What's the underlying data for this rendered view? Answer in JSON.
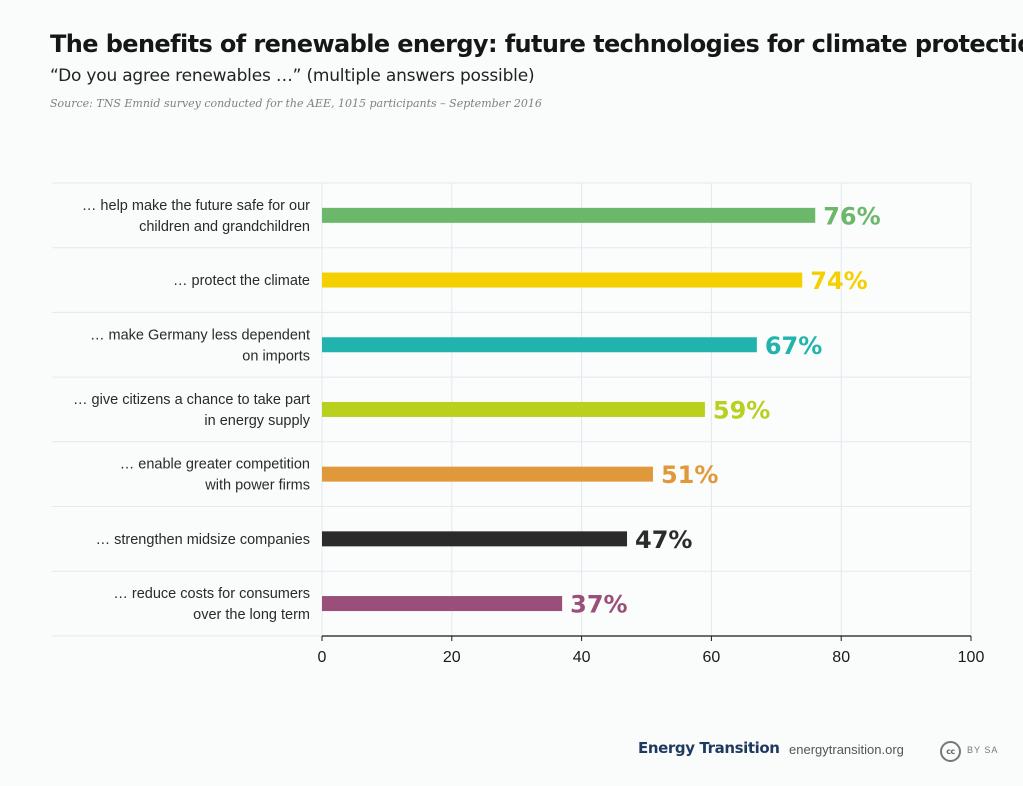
{
  "header": {
    "title": "The benefits of renewable energy: future technologies for climate protection",
    "subtitle": "“Do you agree renewables …” (multiple answers possible)",
    "source": "Source: TNS Emnid survey conducted for the AEE, 1015 participants – September 2016"
  },
  "chart_data": {
    "type": "bar",
    "orientation": "horizontal",
    "title": "The benefits of renewable energy: future technologies for climate protection",
    "subtitle": "“Do you agree renewables …” (multiple answers possible)",
    "categories": [
      [
        "… help make the future safe for our",
        "children and grandchildren"
      ],
      [
        "… protect the climate"
      ],
      [
        "… make Germany less dependent",
        "on imports"
      ],
      [
        "… give citizens a chance to take part",
        "in energy supply"
      ],
      [
        "… enable greater competition",
        "with power firms"
      ],
      [
        "… strengthen midsize companies"
      ],
      [
        "… reduce costs for consumers",
        "over the long term"
      ]
    ],
    "values": [
      76,
      74,
      67,
      59,
      51,
      47,
      37
    ],
    "value_labels": [
      "76%",
      "74%",
      "67%",
      "59%",
      "51%",
      "47%",
      "37%"
    ],
    "colors": [
      "#6bb86a",
      "#f5d000",
      "#21b3ad",
      "#b9d01e",
      "#e0993a",
      "#2b2b2b",
      "#9a4f7a"
    ],
    "xlim": [
      0,
      100
    ],
    "xticks": [
      0,
      20,
      40,
      60,
      80,
      100
    ],
    "xtick_labels": [
      "0",
      "20",
      "40",
      "60",
      "80",
      "100"
    ],
    "xlabel": "",
    "ylabel": "",
    "grid": true,
    "legend": "none"
  },
  "footer": {
    "brand": "Energy Transition",
    "url": "energytransition.org",
    "cc_icon_label": "cc",
    "license": "BY SA"
  }
}
